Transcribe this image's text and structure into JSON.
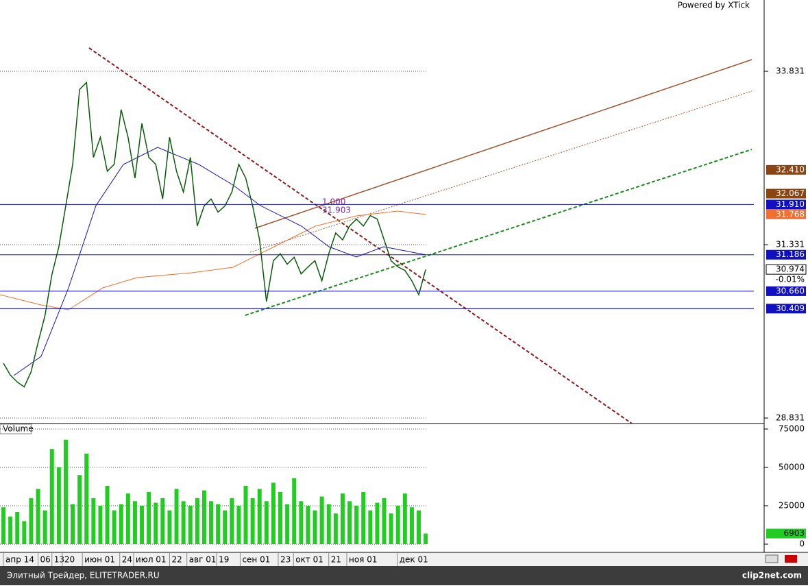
{
  "header": {
    "powered": "Powered by XTick"
  },
  "chart_data": [
    {
      "type": "line",
      "color": "#0a5a0a",
      "values": [
        29.62,
        29.45,
        29.35,
        29.28,
        29.5,
        29.92,
        30.31,
        30.9,
        31.3,
        31.89,
        32.49,
        33.57,
        33.67,
        32.59,
        32.88,
        32.39,
        32.49,
        33.28,
        32.88,
        32.29,
        33.08,
        32.59,
        32.49,
        31.99,
        32.88,
        32.39,
        32.09,
        32.59,
        31.6,
        31.89,
        31.99,
        31.8,
        31.89,
        32.09,
        32.49,
        32.29,
        31.89,
        31.4,
        30.51,
        31.1,
        31.2,
        31.05,
        31.15,
        30.91,
        31.01,
        31.1,
        30.81,
        31.2,
        31.5,
        31.4,
        31.6,
        31.7,
        31.6,
        31.75,
        31.7,
        31.4,
        31.1,
        31.01,
        30.96,
        30.81,
        30.61,
        30.974
      ],
      "xlim": [
        -0.5,
        109.9
      ],
      "ylim": [
        28.752,
        34.859
      ],
      "yticks": [
        33.831,
        31.331,
        28.831
      ],
      "grid": true,
      "xticks": [
        {
          "value": 0,
          "label": "апр 14"
        },
        {
          "value": 5,
          "label": "06"
        },
        {
          "value": 7,
          "label": "13"
        },
        {
          "value": 8.5,
          "label": "20"
        },
        {
          "value": 11.4,
          "label": "июн 01"
        },
        {
          "value": 16.8,
          "label": "24"
        },
        {
          "value": 18.8,
          "label": "июл 01"
        },
        {
          "value": 24,
          "label": "22"
        },
        {
          "value": 26.5,
          "label": "авг 01"
        },
        {
          "value": 30.8,
          "label": "19"
        },
        {
          "value": 34.2,
          "label": "сен 01"
        },
        {
          "value": 39.7,
          "label": "23"
        },
        {
          "value": 41.9,
          "label": "окт 01"
        },
        {
          "value": 47,
          "label": "21"
        },
        {
          "value": 49.6,
          "label": "ноя 01"
        },
        {
          "value": 56.9,
          "label": "дек 01"
        }
      ],
      "levels": [
        {
          "value": 32.41,
          "label": "32.410",
          "color": "#8b4513",
          "line": false
        },
        {
          "value": 32.067,
          "label": "32.067",
          "color": "#8b4513",
          "line": false
        },
        {
          "value": 31.91,
          "label": "31.910",
          "color": "#1010c0",
          "line": true
        },
        {
          "value": 31.768,
          "label": "31.768",
          "color": "#f07030",
          "line": false
        },
        {
          "value": 31.186,
          "label": "31.186",
          "color": "#1010c0",
          "line": true
        },
        {
          "value": 30.974,
          "label": "30.974",
          "color": "#ffffff",
          "line": false
        },
        {
          "value": 30.66,
          "label": "30.660",
          "color": "#1010c0",
          "line": true
        },
        {
          "value": 30.409,
          "label": "30.409",
          "color": "#1010c0",
          "line": true
        }
      ],
      "change_label": "-0.01%",
      "annotations": [
        "1.000",
        "31.903"
      ]
    },
    {
      "type": "bar",
      "title": "Volume",
      "color": "#22cc22",
      "values": [
        24000,
        18000,
        21000,
        15000,
        30000,
        36000,
        22000,
        62000,
        50000,
        68000,
        26000,
        45000,
        59000,
        30000,
        25000,
        38000,
        22000,
        26000,
        33000,
        28000,
        25000,
        34000,
        27000,
        30000,
        22000,
        36000,
        28000,
        25000,
        30000,
        35000,
        28000,
        26000,
        22000,
        30000,
        25000,
        38000,
        30000,
        36000,
        28000,
        40000,
        34000,
        26000,
        43000,
        28000,
        25000,
        22000,
        31000,
        26000,
        20000,
        33000,
        28000,
        25000,
        34000,
        22000,
        27000,
        30000,
        20000,
        25000,
        33000,
        24000,
        22000,
        6903
      ],
      "ylim": [
        0,
        75000
      ],
      "yticks": [
        0,
        25000,
        50000,
        75000
      ],
      "grid": true,
      "last_label": "6903"
    }
  ],
  "footer": {
    "source": "Элитный Трейдер, ELITETRADER.RU",
    "brand": "clip2net.com"
  }
}
